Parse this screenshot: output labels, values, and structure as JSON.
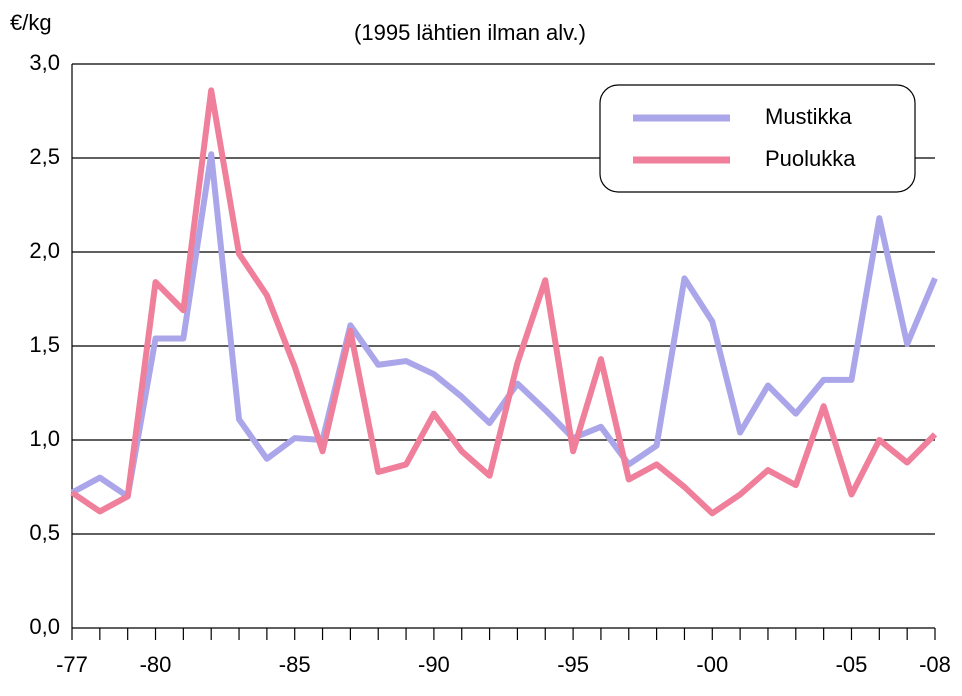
{
  "chart_data": {
    "type": "line",
    "subtitle": "(1995 lähtien ilman alv.)",
    "y_label": "€/kg",
    "categories": [
      "-77",
      null,
      null,
      "-80",
      null,
      null,
      null,
      null,
      "-85",
      null,
      null,
      null,
      null,
      "-90",
      null,
      null,
      null,
      null,
      "-95",
      null,
      null,
      null,
      null,
      "-00",
      null,
      null,
      null,
      null,
      "-05",
      null,
      null,
      "-08"
    ],
    "series": [
      {
        "name": "Mustikka",
        "color": "#aba6ea",
        "values": [
          0.72,
          0.8,
          0.7,
          1.54,
          1.54,
          2.52,
          1.11,
          0.9,
          1.01,
          1.0,
          1.61,
          1.4,
          1.42,
          1.35,
          1.23,
          1.09,
          1.3,
          1.16,
          1.01,
          1.07,
          0.87,
          0.97,
          1.86,
          1.63,
          1.04,
          1.29,
          1.14,
          1.32,
          1.32,
          2.18,
          1.51,
          1.86
        ]
      },
      {
        "name": "Puolukka",
        "color": "#ef7f9a",
        "values": [
          0.72,
          0.62,
          0.7,
          1.84,
          1.69,
          2.86,
          1.99,
          1.77,
          1.39,
          0.94,
          1.58,
          0.83,
          0.87,
          1.14,
          0.94,
          0.81,
          1.41,
          1.85,
          0.94,
          1.43,
          0.79,
          0.87,
          0.75,
          0.61,
          0.71,
          0.84,
          0.76,
          1.18,
          0.71,
          1.0,
          0.88,
          1.03
        ]
      }
    ],
    "ylim": [
      0,
      3
    ],
    "yticks": [
      {
        "value": 0,
        "label": "0,0"
      },
      {
        "value": 0.5,
        "label": "0,5"
      },
      {
        "value": 1,
        "label": "1,0"
      },
      {
        "value": 1.5,
        "label": "1,5"
      },
      {
        "value": 2,
        "label": "2,0"
      },
      {
        "value": 2.5,
        "label": "2,5"
      },
      {
        "value": 3,
        "label": "3,0"
      }
    ],
    "grid": true,
    "legend": "upper right"
  }
}
